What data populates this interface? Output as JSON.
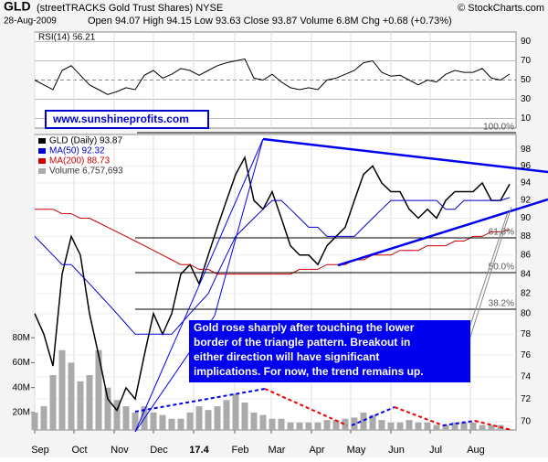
{
  "header": {
    "symbol": "GLD",
    "name": "(streetTRACKS Gold Trust Shares) NYSE",
    "source": "© StockCharts.com",
    "date": "28-Aug-2009",
    "quote": "Open 94.07 High 94.15 Low 93.63 Close 93.87 Volume 6.8M Chg +0.68 (+0.73%)"
  },
  "chart_data": [
    {
      "type": "line",
      "title": "RSI(14) 56.21",
      "x": [
        0,
        1,
        2,
        3,
        4,
        5,
        6,
        7,
        8,
        9,
        10,
        11,
        12,
        13,
        14,
        15,
        16,
        17,
        18,
        19,
        20,
        21,
        22,
        23,
        24,
        25,
        26,
        27,
        28,
        29,
        30,
        31,
        32,
        33,
        34,
        35,
        36,
        37,
        38,
        39,
        40,
        41,
        42,
        43,
        44,
        45,
        46,
        47,
        48,
        49,
        50,
        51,
        52
      ],
      "xlim": [
        0,
        52.7
      ],
      "ylim": [
        0,
        100
      ],
      "yticks": [
        10,
        30,
        50,
        70,
        90
      ],
      "series": [
        {
          "color": "#000000",
          "values": [
            50,
            45,
            40,
            60,
            65,
            55,
            45,
            40,
            35,
            38,
            42,
            40,
            55,
            60,
            52,
            56,
            62,
            60,
            55,
            60,
            65,
            68,
            70,
            72,
            52,
            50,
            56,
            48,
            42,
            40,
            42,
            40,
            50,
            52,
            56,
            60,
            68,
            70,
            58,
            54,
            55,
            50,
            45,
            50,
            48,
            56,
            60,
            58,
            58,
            62,
            52,
            50,
            56.21
          ]
        }
      ]
    },
    {
      "type": "stock",
      "website": "www.sunshineprofits.com",
      "note": [
        "Gold rose sharply after touching the lower",
        "border of the triangle pattern. Breakout in",
        "either direction will have significant",
        "implications. For now, the trend remains up."
      ],
      "annotations": [
        "100.0%",
        "61.8%",
        "50.0%",
        "38.2%"
      ],
      "x": [
        0,
        1,
        2,
        3,
        4,
        5,
        6,
        7,
        8,
        9,
        10,
        11,
        12,
        13,
        14,
        15,
        16,
        17,
        18,
        19,
        20,
        21,
        22,
        23,
        24,
        25,
        26,
        27,
        28,
        29,
        30,
        31,
        32,
        33,
        34,
        35,
        36,
        37,
        38,
        39,
        40,
        41,
        42,
        43,
        44,
        45,
        46,
        47,
        48,
        49,
        50,
        51,
        52
      ],
      "xlim": [
        0,
        52.7
      ],
      "xticks": [
        {
          "value": 0,
          "label": "Sep"
        },
        {
          "value": 4.3,
          "label": "Oct"
        },
        {
          "value": 8.7,
          "label": "Nov"
        },
        {
          "value": 13,
          "label": "Dec"
        },
        17.4,
        {
          "value": 21.9,
          "label": "Feb"
        },
        {
          "value": 25.9,
          "label": "Mar"
        },
        {
          "value": 30.3,
          "label": "Apr"
        },
        {
          "value": 34.6,
          "label": "May"
        },
        {
          "value": 39,
          "label": "Jun"
        },
        {
          "value": 43.3,
          "label": "Jul"
        },
        {
          "value": 47.7,
          "label": "Aug"
        }
      ],
      "log_scale": true,
      "ylim": [
        69.3,
        99.8
      ],
      "yticks": [
        70,
        72,
        74,
        76,
        78,
        80,
        82,
        84,
        86,
        88,
        90,
        92,
        94,
        96,
        98
      ],
      "y2lim": [
        6,
        243
      ],
      "y2ticks": [
        {
          "value": 20,
          "label": "20M"
        },
        {
          "value": 40,
          "label": "40M"
        },
        {
          "value": 60,
          "label": "60M"
        },
        {
          "value": 80,
          "label": "80M"
        }
      ],
      "series": [
        {
          "name": "GLD (Daily) 93.87",
          "color": "#000000",
          "values": [
            80,
            78,
            75,
            84,
            88,
            86,
            80,
            76,
            72,
            71,
            73,
            72,
            76,
            80,
            78,
            80,
            84,
            85,
            83,
            86,
            89,
            92,
            95,
            97,
            92,
            91,
            93,
            90,
            87,
            86,
            86,
            85,
            87,
            88,
            89,
            92,
            95,
            96,
            94,
            93,
            93,
            91,
            90,
            91,
            90,
            92,
            93,
            93,
            93,
            94,
            92,
            92,
            93.87
          ]
        },
        {
          "name": "MA(50) 92.32",
          "color": "#0000cc",
          "values": [
            88,
            87,
            86,
            85,
            85,
            84,
            83,
            82,
            81,
            80,
            79,
            78,
            78,
            78,
            78,
            78,
            79,
            80,
            81,
            82,
            84,
            86,
            88,
            89,
            90,
            91,
            92,
            92,
            91,
            90,
            89,
            89,
            88,
            88,
            88,
            88,
            89,
            90,
            91,
            92,
            92,
            92,
            92,
            92,
            92,
            91,
            91,
            92,
            92,
            92,
            92,
            92,
            92.32
          ]
        },
        {
          "name": "MA(200) 88.73",
          "color": "#cc0000",
          "values": [
            91,
            91,
            91,
            90.5,
            90.5,
            90,
            90,
            89.5,
            89,
            88.5,
            88,
            87.5,
            87,
            86.5,
            86,
            85.5,
            85,
            85,
            84.5,
            84.5,
            84,
            84,
            84,
            84,
            84,
            84,
            84,
            84,
            84,
            84.5,
            84.5,
            84.5,
            85,
            85,
            85,
            85.5,
            85.5,
            86,
            86,
            86,
            86.5,
            86.5,
            86.5,
            87,
            87,
            87,
            87.5,
            87.5,
            88,
            88,
            88.5,
            88.5,
            88.73
          ]
        },
        {
          "name": "Volume 6,757,693",
          "color": "#aaaaaa",
          "axis": "y2",
          "values": [
            20,
            25,
            50,
            70,
            60,
            45,
            50,
            70,
            40,
            30,
            25,
            20,
            25,
            20,
            18,
            15,
            15,
            20,
            25,
            22,
            25,
            30,
            35,
            28,
            20,
            18,
            15,
            15,
            12,
            12,
            12,
            12,
            14,
            14,
            15,
            16,
            20,
            18,
            14,
            12,
            12,
            14,
            12,
            12,
            10,
            10,
            12,
            12,
            12,
            10,
            10,
            10,
            6.757693
          ]
        }
      ]
    }
  ]
}
